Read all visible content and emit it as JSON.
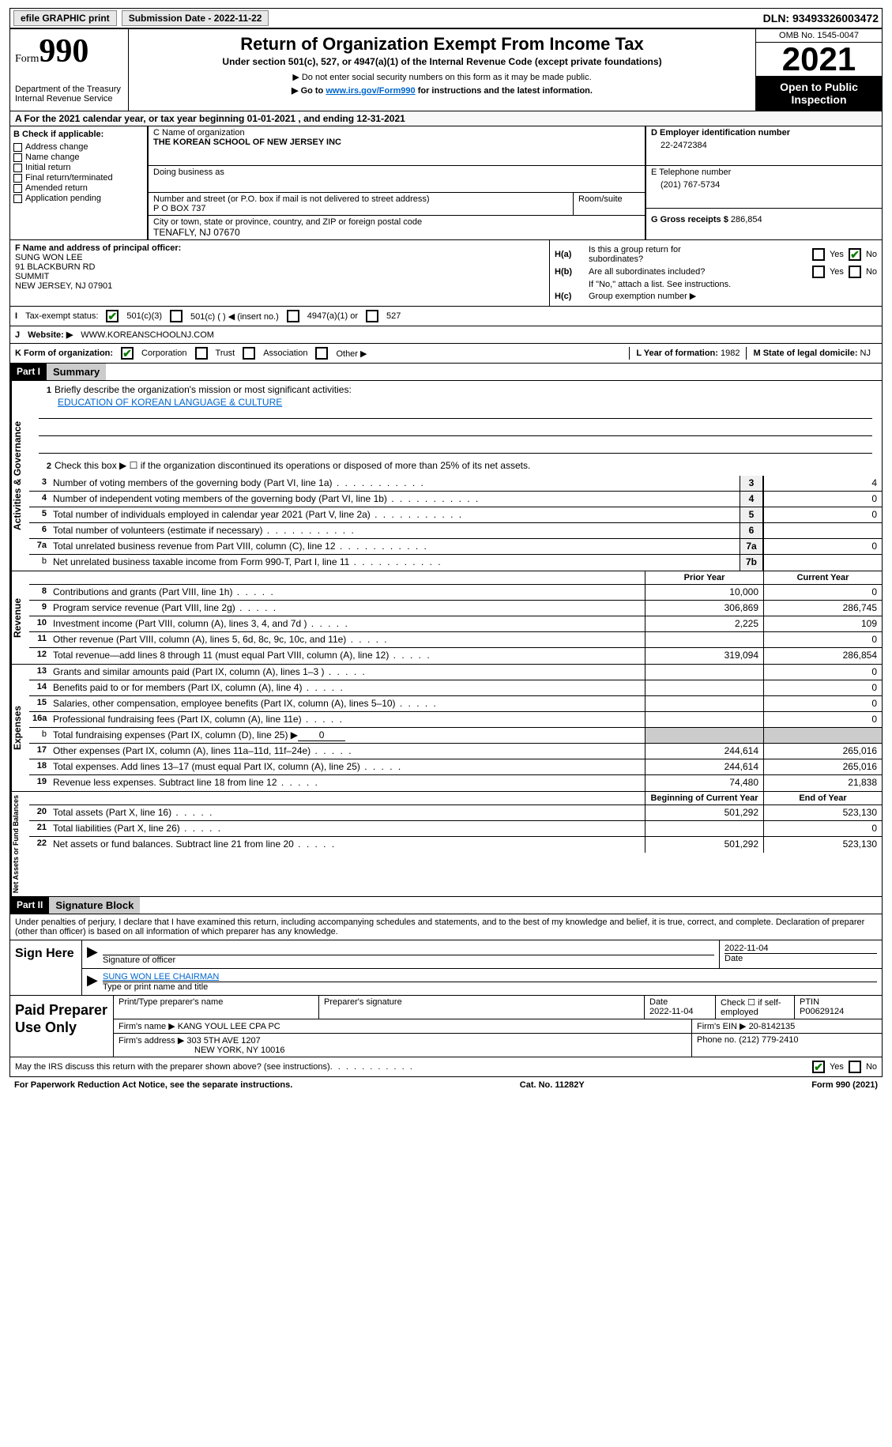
{
  "topbar": {
    "efile": "efile GRAPHIC print",
    "submission_label": "Submission Date - ",
    "submission_date": "2022-11-22",
    "dln_label": "DLN: ",
    "dln": "93493326003472"
  },
  "header": {
    "form_word": "Form",
    "form_num": "990",
    "dept": "Department of the Treasury",
    "irs": "Internal Revenue Service",
    "title": "Return of Organization Exempt From Income Tax",
    "subtitle": "Under section 501(c), 527, or 4947(a)(1) of the Internal Revenue Code (except private foundations)",
    "note1": "▶ Do not enter social security numbers on this form as it may be made public.",
    "note2_pre": "▶ Go to ",
    "note2_link": "www.irs.gov/Form990",
    "note2_post": " for instructions and the latest information.",
    "omb": "OMB No. 1545-0047",
    "year": "2021",
    "open": "Open to Public Inspection"
  },
  "sectionA": {
    "text_pre": "A For the 2021 calendar year, or tax year beginning ",
    "begin": "01-01-2021",
    "mid": " , and ending ",
    "end": "12-31-2021"
  },
  "sectionB": {
    "label": "B Check if applicable:",
    "items": [
      "Address change",
      "Name change",
      "Initial return",
      "Final return/terminated",
      "Amended return",
      "Application pending"
    ]
  },
  "sectionC": {
    "name_label": "C Name of organization",
    "name": "THE KOREAN SCHOOL OF NEW JERSEY INC",
    "dba_label": "Doing business as",
    "dba": "",
    "addr_label": "Number and street (or P.O. box if mail is not delivered to street address)",
    "room_label": "Room/suite",
    "addr": "P O BOX 737",
    "city_label": "City or town, state or province, country, and ZIP or foreign postal code",
    "city": "TENAFLY, NJ  07670"
  },
  "sectionD": {
    "label": "D Employer identification number",
    "ein": "22-2472384"
  },
  "sectionE": {
    "label": "E Telephone number",
    "phone": "(201) 767-5734"
  },
  "sectionG": {
    "label": "G Gross receipts $ ",
    "amount": "286,854"
  },
  "sectionF": {
    "label": "F Name and address of principal officer:",
    "name": "SUNG WON LEE",
    "addr1": "91 BLACKBURN RD",
    "addr2": "SUMMIT",
    "addr3": "NEW JERSEY, NJ  07901"
  },
  "sectionH": {
    "a_label": "Is this a group return for",
    "a_label2": "subordinates?",
    "b_label": "Are all subordinates included?",
    "b_note": "If \"No,\" attach a list. See instructions.",
    "c_label": "Group exemption number ▶",
    "ha": "H(a)",
    "hb": "H(b)",
    "hc": "H(c)",
    "yes": "Yes",
    "no": "No"
  },
  "sectionI": {
    "label": "I",
    "text": "Tax-exempt status:",
    "opt1": "501(c)(3)",
    "opt2": "501(c) (  ) ◀ (insert no.)",
    "opt3": "4947(a)(1) or",
    "opt4": "527"
  },
  "sectionJ": {
    "label": "J",
    "text": "Website: ▶",
    "url": "WWW.KOREANSCHOOLNJ.COM"
  },
  "sectionK": {
    "label": "K Form of organization:",
    "opts": [
      "Corporation",
      "Trust",
      "Association",
      "Other ▶"
    ],
    "l_label": "L Year of formation: ",
    "l_val": "1982",
    "m_label": "M State of legal domicile: ",
    "m_val": "NJ"
  },
  "part1": {
    "hdr": "Part I",
    "title": "Summary",
    "line1_label": "Briefly describe the organization's mission or most significant activities:",
    "line1_val": "EDUCATION OF KOREAN LANGUAGE & CULTURE",
    "line2": "Check this box ▶ ☐ if the organization discontinued its operations or disposed of more than 25% of its net assets.",
    "sideA": "Activities & Governance",
    "sideB": "Revenue",
    "sideC": "Expenses",
    "sideD": "Net Assets or Fund Balances",
    "col_prior": "Prior Year",
    "col_current": "Current Year",
    "col_begin": "Beginning of Current Year",
    "col_end": "End of Year",
    "lines_gov": [
      {
        "n": "3",
        "d": "Number of voting members of the governing body (Part VI, line 1a)",
        "box": "3",
        "v": "4"
      },
      {
        "n": "4",
        "d": "Number of independent voting members of the governing body (Part VI, line 1b)",
        "box": "4",
        "v": "0"
      },
      {
        "n": "5",
        "d": "Total number of individuals employed in calendar year 2021 (Part V, line 2a)",
        "box": "5",
        "v": "0"
      },
      {
        "n": "6",
        "d": "Total number of volunteers (estimate if necessary)",
        "box": "6",
        "v": ""
      },
      {
        "n": "7a",
        "d": "Total unrelated business revenue from Part VIII, column (C), line 12",
        "box": "7a",
        "v": "0"
      },
      {
        "n": "b",
        "d": "Net unrelated business taxable income from Form 990-T, Part I, line 11",
        "box": "7b",
        "v": "",
        "sub": true
      }
    ],
    "lines_rev": [
      {
        "n": "8",
        "d": "Contributions and grants (Part VIII, line 1h)",
        "p": "10,000",
        "c": "0"
      },
      {
        "n": "9",
        "d": "Program service revenue (Part VIII, line 2g)",
        "p": "306,869",
        "c": "286,745"
      },
      {
        "n": "10",
        "d": "Investment income (Part VIII, column (A), lines 3, 4, and 7d )",
        "p": "2,225",
        "c": "109"
      },
      {
        "n": "11",
        "d": "Other revenue (Part VIII, column (A), lines 5, 6d, 8c, 9c, 10c, and 11e)",
        "p": "",
        "c": "0"
      },
      {
        "n": "12",
        "d": "Total revenue—add lines 8 through 11 (must equal Part VIII, column (A), line 12)",
        "p": "319,094",
        "c": "286,854"
      }
    ],
    "lines_exp": [
      {
        "n": "13",
        "d": "Grants and similar amounts paid (Part IX, column (A), lines 1–3 )",
        "p": "",
        "c": "0"
      },
      {
        "n": "14",
        "d": "Benefits paid to or for members (Part IX, column (A), line 4)",
        "p": "",
        "c": "0"
      },
      {
        "n": "15",
        "d": "Salaries, other compensation, employee benefits (Part IX, column (A), lines 5–10)",
        "p": "",
        "c": "0"
      },
      {
        "n": "16a",
        "d": "Professional fundraising fees (Part IX, column (A), line 11e)",
        "p": "",
        "c": "0"
      },
      {
        "n": "b",
        "d": "Total fundraising expenses (Part IX, column (D), line 25) ▶",
        "val": "0",
        "sub": true,
        "special": true
      },
      {
        "n": "17",
        "d": "Other expenses (Part IX, column (A), lines 11a–11d, 11f–24e)",
        "p": "244,614",
        "c": "265,016"
      },
      {
        "n": "18",
        "d": "Total expenses. Add lines 13–17 (must equal Part IX, column (A), line 25)",
        "p": "244,614",
        "c": "265,016"
      },
      {
        "n": "19",
        "d": "Revenue less expenses. Subtract line 18 from line 12",
        "p": "74,480",
        "c": "21,838"
      }
    ],
    "lines_net": [
      {
        "n": "20",
        "d": "Total assets (Part X, line 16)",
        "p": "501,292",
        "c": "523,130"
      },
      {
        "n": "21",
        "d": "Total liabilities (Part X, line 26)",
        "p": "",
        "c": "0"
      },
      {
        "n": "22",
        "d": "Net assets or fund balances. Subtract line 21 from line 20",
        "p": "501,292",
        "c": "523,130"
      }
    ]
  },
  "part2": {
    "hdr": "Part II",
    "title": "Signature Block",
    "decl": "Under penalties of perjury, I declare that I have examined this return, including accompanying schedules and statements, and to the best of my knowledge and belief, it is true, correct, and complete. Declaration of preparer (other than officer) is based on all information of which preparer has any knowledge.",
    "sign_here": "Sign Here",
    "sig_officer": "Signature of officer",
    "sig_date": "2022-11-04",
    "date_label": "Date",
    "sig_name": "SUNG WON LEE  CHAIRMAN",
    "sig_name_label": "Type or print name and title",
    "paid_prep": "Paid Preparer Use Only",
    "prep_name_label": "Print/Type preparer's name",
    "prep_name": "",
    "prep_sig_label": "Preparer's signature",
    "prep_date_label": "Date",
    "prep_date": "2022-11-04",
    "prep_check_label": "Check ☐ if self-employed",
    "ptin_label": "PTIN",
    "ptin": "P00629124",
    "firm_name_label": "Firm's name    ▶ ",
    "firm_name": "KANG YOUL LEE CPA PC",
    "firm_ein_label": "Firm's EIN ▶ ",
    "firm_ein": "20-8142135",
    "firm_addr_label": "Firm's address ▶ ",
    "firm_addr1": "303 5TH AVE 1207",
    "firm_addr2": "NEW YORK, NY  10016",
    "firm_phone_label": "Phone no. ",
    "firm_phone": "(212) 779-2410"
  },
  "footer": {
    "discuss": "May the IRS discuss this return with the preparer shown above? (see instructions)",
    "yes": "Yes",
    "no": "No",
    "paperwork": "For Paperwork Reduction Act Notice, see the separate instructions.",
    "cat": "Cat. No. 11282Y",
    "form": "Form 990 (2021)"
  }
}
